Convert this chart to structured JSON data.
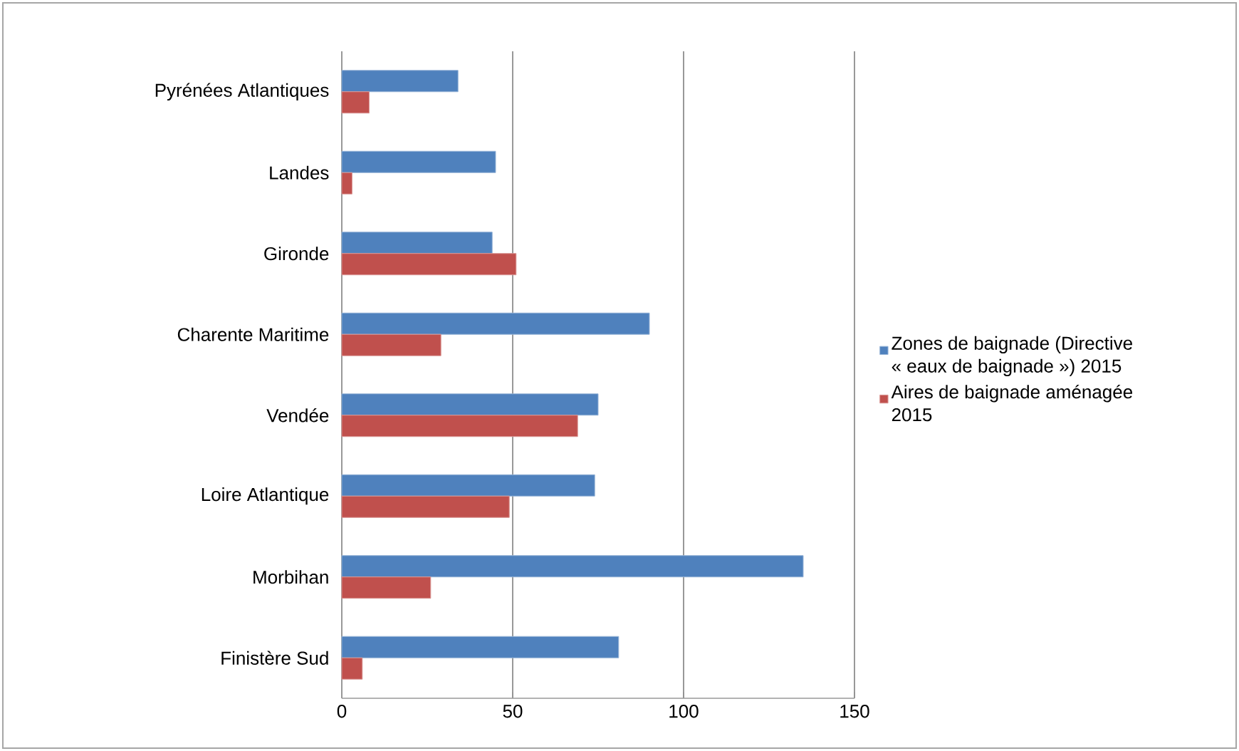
{
  "chart_data": {
    "type": "bar",
    "orientation": "horizontal",
    "categories": [
      "Pyrénées Atlantiques",
      "Landes",
      "Gironde",
      "Charente Maritime",
      "Vendée",
      "Loire Atlantique",
      "Morbihan",
      "Finistère Sud"
    ],
    "series": [
      {
        "name": "Zones de baignade (Directive « eaux de baignade ») 2015",
        "color": "#4f81bd",
        "values": [
          34,
          45,
          44,
          90,
          75,
          74,
          135,
          81
        ]
      },
      {
        "name": "Aires de baignade aménagée 2015",
        "color": "#c0504d",
        "values": [
          8,
          3,
          51,
          29,
          69,
          49,
          26,
          6
        ]
      }
    ],
    "xlim": [
      0,
      150
    ],
    "xticks": [
      0,
      50,
      100,
      150
    ],
    "grid": "x",
    "legend": "right"
  }
}
